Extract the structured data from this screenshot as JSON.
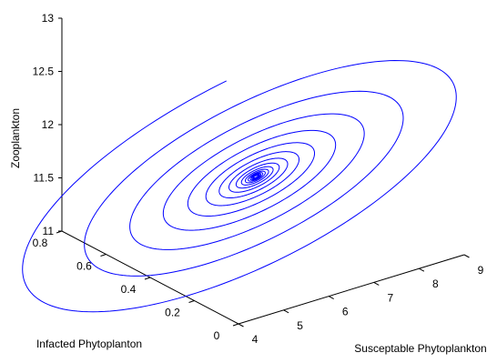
{
  "chart_data": {
    "type": "line",
    "view": "3d",
    "grid": false,
    "axes": {
      "x": {
        "label": "Susceptable Phytoplankton",
        "range": [
          4,
          9
        ],
        "ticks": [
          4,
          5,
          6,
          7,
          8,
          9
        ]
      },
      "y": {
        "label": "Infacted Phytoplanton",
        "range": [
          0,
          0.8
        ],
        "ticks": [
          0,
          0.2,
          0.4,
          0.6,
          0.8
        ]
      },
      "z": {
        "label": "Zooplankton",
        "range": [
          11,
          13
        ],
        "ticks": [
          11,
          11.5,
          12,
          12.5,
          13
        ]
      }
    },
    "series": [
      {
        "color": "#0000ff",
        "trajectory": {
          "kind": "inward-spiral",
          "start": [
            5.2,
            0.3,
            12.8
          ],
          "equilibrium": [
            6.1,
            0.35,
            11.73
          ],
          "turns": 16
        }
      }
    ]
  }
}
